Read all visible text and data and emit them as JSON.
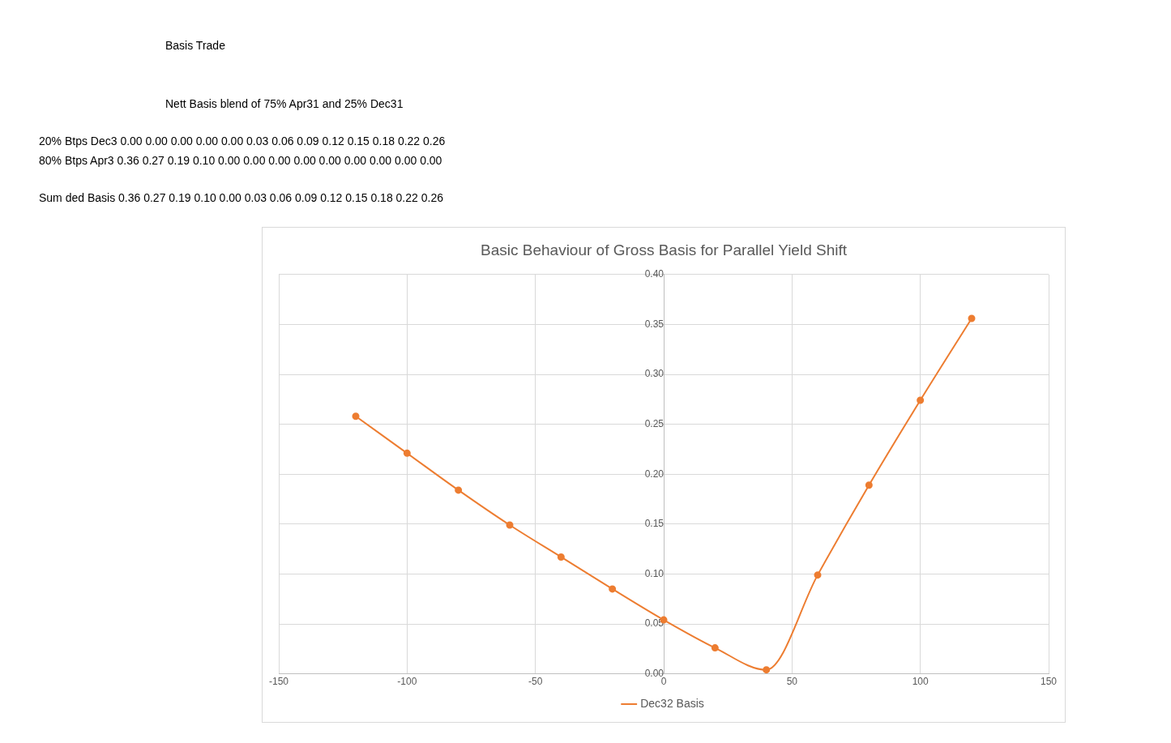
{
  "chart_data": [
    {
      "type": "other",
      "title": "Basis Trade",
      "subtitle": "Nett Basis blend of 75% Apr31 and 25% Dec31",
      "annotations": [
        "20% Btps Dec3 0.00 0.00 0.00 0.00 0.00 0.03 0.06 0.09 0.12 0.15 0.18 0.22 0.26",
        "80% Btps Apr3 0.36 0.27 0.19 0.10 0.00 0.00 0.00 0.00 0.00 0.00 0.00 0.00 0.00",
        "Sum ded Basis 0.36 0.27 0.19 0.10 0.00 0.03 0.06 0.09 0.12 0.15 0.18 0.22 0.26"
      ]
    },
    {
      "type": "line",
      "title": "Basic Behaviour of Gross Basis for Parallel Yield Shift",
      "x": [
        -120,
        -100,
        -80,
        -60,
        -40,
        -20,
        0,
        20,
        40,
        60,
        80,
        100,
        120
      ],
      "series": [
        {
          "name": "Dec32 Basis",
          "color": "#ed7d31",
          "values": [
            0.258,
            0.221,
            0.184,
            0.149,
            0.117,
            0.085,
            0.054,
            0.026,
            0.004,
            0.099,
            0.189,
            0.274,
            0.356
          ]
        }
      ],
      "xlim": [
        -150,
        150
      ],
      "xticks": [
        -150,
        -100,
        -50,
        0,
        50,
        100,
        150
      ],
      "ylim": [
        0,
        0.4
      ],
      "yticks": [
        {
          "value": 0,
          "label": "0.00"
        },
        {
          "value": 0.05,
          "label": "0.05"
        },
        {
          "value": 0.1,
          "label": "0.10"
        },
        {
          "value": 0.15,
          "label": "0.15"
        },
        {
          "value": 0.2,
          "label": "0.20"
        },
        {
          "value": 0.25,
          "label": "0.25"
        },
        {
          "value": 0.3,
          "label": "0.30"
        },
        {
          "value": 0.35,
          "label": "0.35"
        },
        {
          "value": 0.4,
          "label": "0.40"
        }
      ],
      "grid": true,
      "legend": "bottom",
      "marker": "circle"
    }
  ]
}
